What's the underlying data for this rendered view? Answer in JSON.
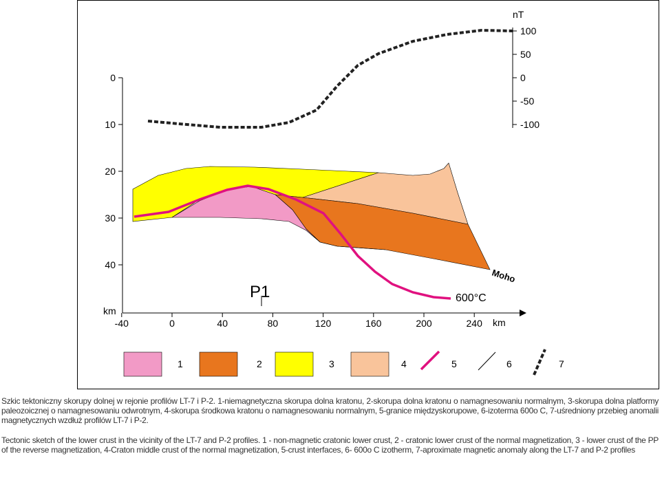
{
  "figure": {
    "depth_unit": "km",
    "depth_ticks": [
      0,
      10,
      20,
      30,
      40
    ],
    "distance_unit": "km",
    "distance_ticks": [
      -40,
      0,
      40,
      80,
      120,
      160,
      200,
      240
    ],
    "anomaly_unit": "nT",
    "anomaly_ticks": [
      100,
      50,
      0,
      -50,
      -100
    ],
    "profile_label": "P1",
    "moho_label": "Moho",
    "isotherm_label": "600°C",
    "legend": [
      "1",
      "2",
      "3",
      "4",
      "5",
      "6",
      "7"
    ]
  },
  "captions": [
    "Szkic tektoniczny skorupy dolnej w rejonie profilów LT-7 i P-2. 1-niemagnetyczna skorupa dolna kratonu, 2-skorupa dolna kratonu o namagnesowaniu normalnym, 3-skorupa dolna platformy paleozoicznej o namagnesowaniu odwrotnym, 4-skorupa środkowa kratonu o namagnesowaniu normalnym, 5-granice międzyskorupowe, 6-izoterma 600o C, 7-uśredniony przebieg anomalii magnetycznych wzdłuż profilów LT-7 i P-2.",
    "Tectonic sketch of the lower crust in the vicinity of the LT-7 and P-2 profiles. 1 - non-magnetic cratonic lower crust, 2 - cratonic lower crust of the normal magnetization, 3 - lower crust of the PP of the reverse magnetization, 4-Craton middle crust of the normal magnetization, 5-crust interfaces, 6- 600o C izotherm, 7-aproximate magnetic anomaly along the LT-7 and P-2 profiles"
  ]
}
